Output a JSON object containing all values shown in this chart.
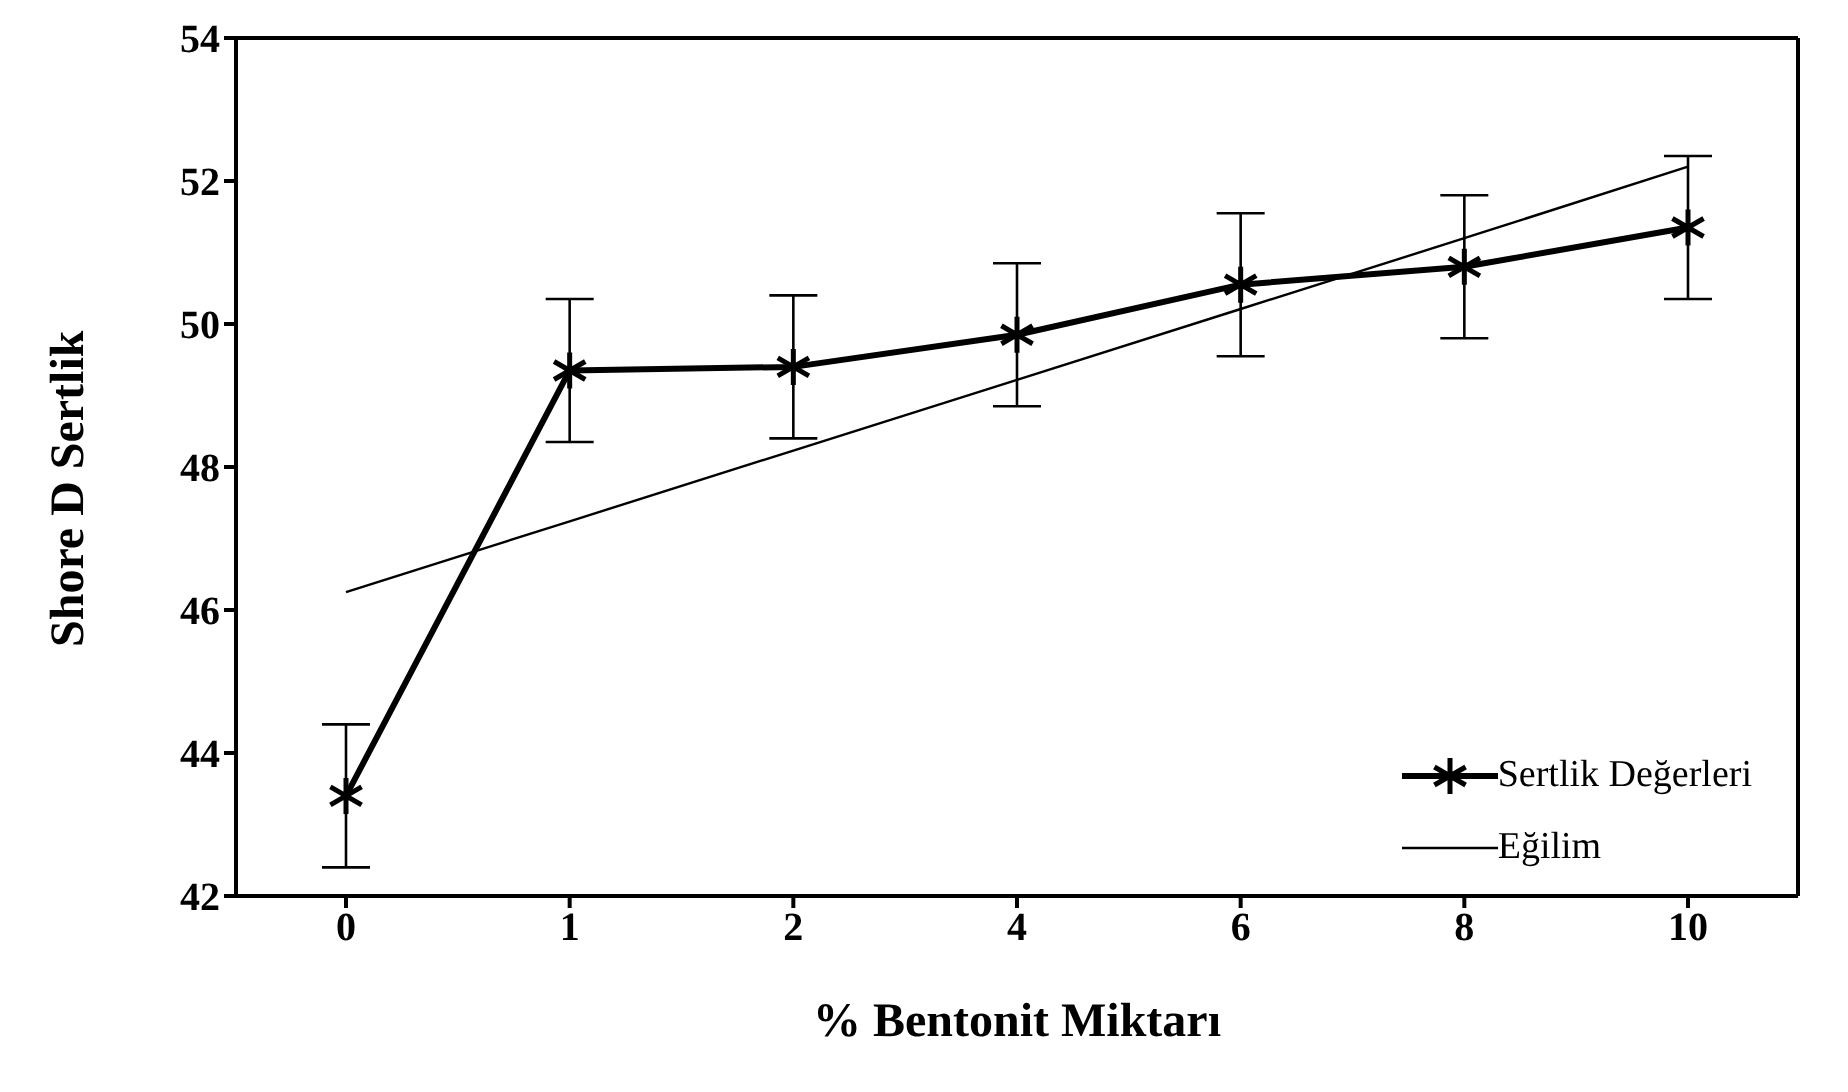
{
  "chart_data": {
    "type": "line",
    "xlabel": "% Bentonit Miktarı",
    "ylabel": "Shore D Sertlik",
    "categories": [
      "0",
      "1",
      "2",
      "4",
      "6",
      "8",
      "10"
    ],
    "series": [
      {
        "name": "Sertlik Değerleri",
        "color": "#000000",
        "values": [
          43.4,
          49.35,
          49.4,
          49.85,
          50.55,
          50.8,
          51.35
        ],
        "errors": [
          1,
          1,
          1,
          1,
          1,
          1,
          1
        ],
        "marker": "cross"
      },
      {
        "name": "Eğilim",
        "color": "#000000",
        "values": [
          46.25,
          47.24,
          48.23,
          49.22,
          50.21,
          51.2,
          52.2
        ],
        "marker": "none"
      }
    ],
    "ylim": [
      42,
      54
    ],
    "yticks": [
      42,
      44,
      46,
      48,
      50,
      52,
      54
    ],
    "grid": false,
    "legend": "bottom right"
  }
}
